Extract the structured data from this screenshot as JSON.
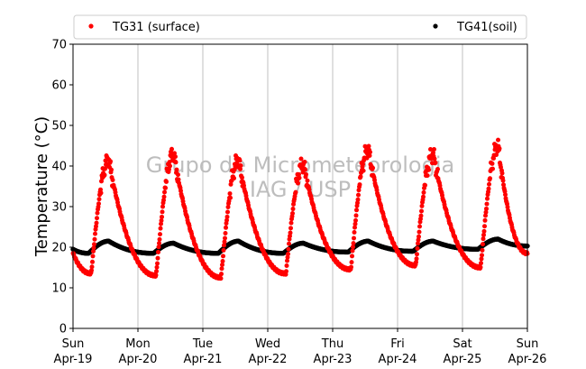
{
  "chart_data": {
    "type": "scatter",
    "ylabel": "Temperature (°C)",
    "ylim": [
      0,
      70
    ],
    "yticks": [
      0,
      10,
      20,
      30,
      40,
      50,
      60,
      70
    ],
    "x_range_days": [
      0,
      7
    ],
    "x_ticks": [
      {
        "day": 0,
        "weekday": "Sun",
        "date": "Apr-19"
      },
      {
        "day": 1,
        "weekday": "Mon",
        "date": "Apr-20"
      },
      {
        "day": 2,
        "weekday": "Tue",
        "date": "Apr-21"
      },
      {
        "day": 3,
        "weekday": "Wed",
        "date": "Apr-22"
      },
      {
        "day": 4,
        "weekday": "Thu",
        "date": "Apr-23"
      },
      {
        "day": 5,
        "weekday": "Fri",
        "date": "Apr-24"
      },
      {
        "day": 6,
        "weekday": "Sat",
        "date": "Apr-25"
      },
      {
        "day": 7,
        "weekday": "Sun",
        "date": "Apr-26"
      }
    ],
    "grid": "vertical",
    "legend_position": "top",
    "watermark": [
      "Grupo de Micrometeorologia",
      "IAG / USP"
    ],
    "series": [
      {
        "name": "TG31 (surface)",
        "color": "#ff0000",
        "daily_min": [
          13.5,
          13.0,
          12.5,
          13.5,
          14.5,
          15.5,
          15.0
        ],
        "daily_max": [
          41.5,
          43.0,
          41.5,
          40.5,
          44.0,
          43.0,
          45.0
        ],
        "start_value": 18.5,
        "end_value": 18.5
      },
      {
        "name": "TG41(soil)",
        "color": "#000000",
        "daily_min": [
          18.5,
          18.5,
          18.5,
          18.5,
          18.8,
          19.0,
          19.5
        ],
        "daily_max": [
          21.5,
          21.0,
          21.5,
          21.0,
          21.5,
          21.5,
          22.0
        ],
        "start_value": 19.5,
        "end_value": 20.3
      }
    ]
  }
}
